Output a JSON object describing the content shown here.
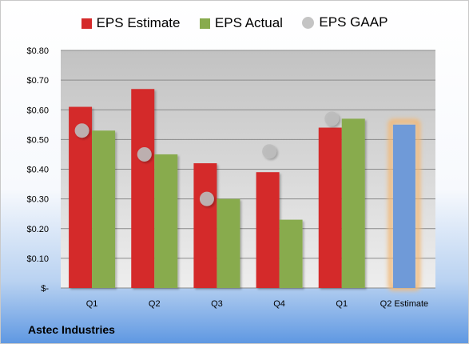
{
  "chart_data": {
    "type": "bar",
    "categories": [
      "Q1",
      "Q2",
      "Q3",
      "Q4",
      "Q1",
      "Q2 Estimate"
    ],
    "series": [
      {
        "name": "EPS Estimate",
        "values": [
          0.61,
          0.67,
          0.42,
          0.39,
          0.54,
          null
        ],
        "color": "#d42a2a"
      },
      {
        "name": "EPS Actual",
        "values": [
          0.53,
          0.45,
          0.3,
          0.23,
          0.57,
          null
        ],
        "color": "#88ab4d"
      },
      {
        "name": "EPS GAAP",
        "values": [
          0.53,
          0.45,
          0.3,
          0.46,
          0.57,
          null
        ],
        "color": "#bdbdbd"
      }
    ],
    "projection": {
      "category": "Q2 Estimate",
      "value": 0.55,
      "color": "#6f9ad8",
      "highlight": "#f2b978"
    },
    "y_ticks": [
      {
        "value": 0.8,
        "label": "$0.80"
      },
      {
        "value": 0.7,
        "label": "$0.70"
      },
      {
        "value": 0.6,
        "label": "$0.60"
      },
      {
        "value": 0.5,
        "label": "$0.50"
      },
      {
        "value": 0.4,
        "label": "$0.40"
      },
      {
        "value": 0.3,
        "label": "$0.30"
      },
      {
        "value": 0.2,
        "label": "$0.20"
      },
      {
        "value": 0.1,
        "label": "$0.10"
      },
      {
        "value": 0,
        "label": "$-"
      }
    ],
    "ylim": [
      0,
      0.8
    ],
    "grid": true,
    "legend_position": "top"
  },
  "legend": {
    "estimate": "EPS Estimate",
    "actual": "EPS Actual",
    "gaap": "EPS GAAP"
  },
  "company": "Astec Industries"
}
